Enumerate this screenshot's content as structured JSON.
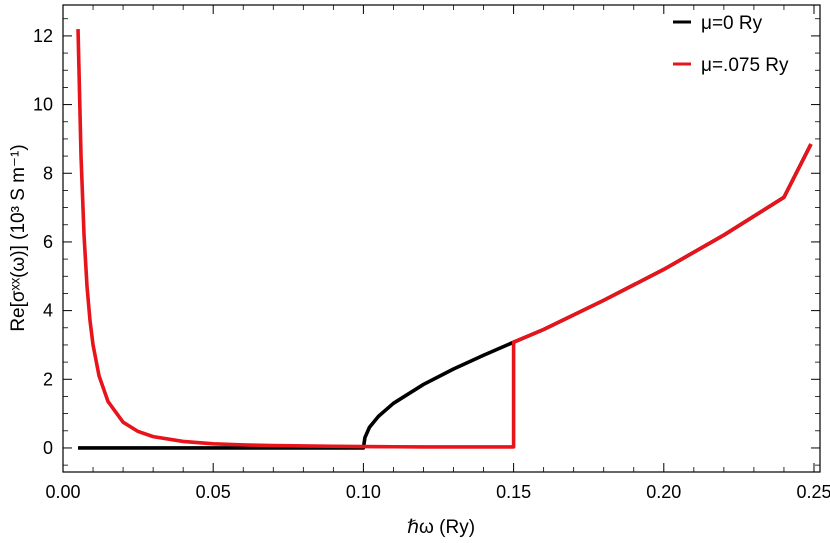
{
  "chart_data": {
    "type": "line",
    "title": "",
    "xlabel": "ℏω (Ry)",
    "ylabel": "Re[σˣˣ(ω)] (10³ S m⁻¹)",
    "xlim": [
      0.0,
      0.252
    ],
    "ylim": [
      -0.7,
      12.9
    ],
    "x_ticks": [
      0.0,
      0.05,
      0.1,
      0.15,
      0.2,
      0.25
    ],
    "x_tick_labels": [
      "0.00",
      "0.05",
      "0.10",
      "0.15",
      "0.20",
      "0.25"
    ],
    "y_ticks": [
      0,
      2,
      4,
      6,
      8,
      10,
      12
    ],
    "y_tick_labels": [
      "0",
      "2",
      "4",
      "6",
      "8",
      "10",
      "12"
    ],
    "grid": false,
    "legend_position": "top-right",
    "series": [
      {
        "name": "μ=0 Ry",
        "color": "#000000",
        "x": [
          0.005,
          0.02,
          0.05,
          0.08,
          0.0995,
          0.1,
          0.1005,
          0.102,
          0.105,
          0.11,
          0.12,
          0.13,
          0.14,
          0.15,
          0.16,
          0.18,
          0.2,
          0.22,
          0.24,
          0.249
        ],
        "y": [
          0.0,
          0.0,
          0.0,
          0.0,
          0.0,
          0.0,
          0.3,
          0.6,
          0.92,
          1.3,
          1.85,
          2.3,
          2.7,
          3.08,
          3.45,
          4.3,
          5.2,
          6.2,
          7.3,
          8.85
        ]
      },
      {
        "name": "μ=.075 Ry",
        "color": "#e8141b",
        "x": [
          0.005,
          0.006,
          0.007,
          0.008,
          0.009,
          0.01,
          0.012,
          0.015,
          0.02,
          0.025,
          0.03,
          0.04,
          0.05,
          0.06,
          0.07,
          0.08,
          0.09,
          0.1,
          0.11,
          0.12,
          0.13,
          0.14,
          0.15,
          0.15,
          0.16,
          0.18,
          0.2,
          0.22,
          0.24,
          0.249
        ],
        "y": [
          12.2,
          8.5,
          6.2,
          4.7,
          3.7,
          3.0,
          2.1,
          1.35,
          0.75,
          0.48,
          0.33,
          0.19,
          0.12,
          0.09,
          0.07,
          0.06,
          0.05,
          0.04,
          0.035,
          0.03,
          0.03,
          0.03,
          0.03,
          3.08,
          3.45,
          4.3,
          5.2,
          6.2,
          7.3,
          8.85
        ]
      }
    ]
  }
}
